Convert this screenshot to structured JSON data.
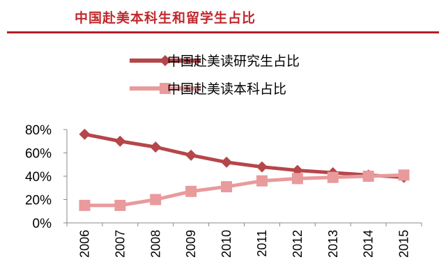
{
  "title": "中国赴美本科生和留学生占比",
  "chart_data": {
    "type": "line",
    "x": [
      "2006",
      "2007",
      "2008",
      "2009",
      "2010",
      "2011",
      "2012",
      "2013",
      "2014",
      "2015"
    ],
    "series": [
      {
        "name": "中国赴美读研究生占比",
        "values": [
          76,
          70,
          65,
          58,
          52,
          48,
          45,
          43,
          41,
          39
        ],
        "color": "#b5464a",
        "marker": "diamond"
      },
      {
        "name": "中国赴美读本科占比",
        "values": [
          15,
          15,
          20,
          27,
          31,
          36,
          38,
          39,
          40,
          41
        ],
        "color": "#e99a9c",
        "marker": "square"
      }
    ],
    "ylim": [
      0,
      80
    ],
    "yticks": [
      "0%",
      "20%",
      "40%",
      "60%",
      "80%"
    ],
    "grid": false,
    "legend_position": "top"
  }
}
